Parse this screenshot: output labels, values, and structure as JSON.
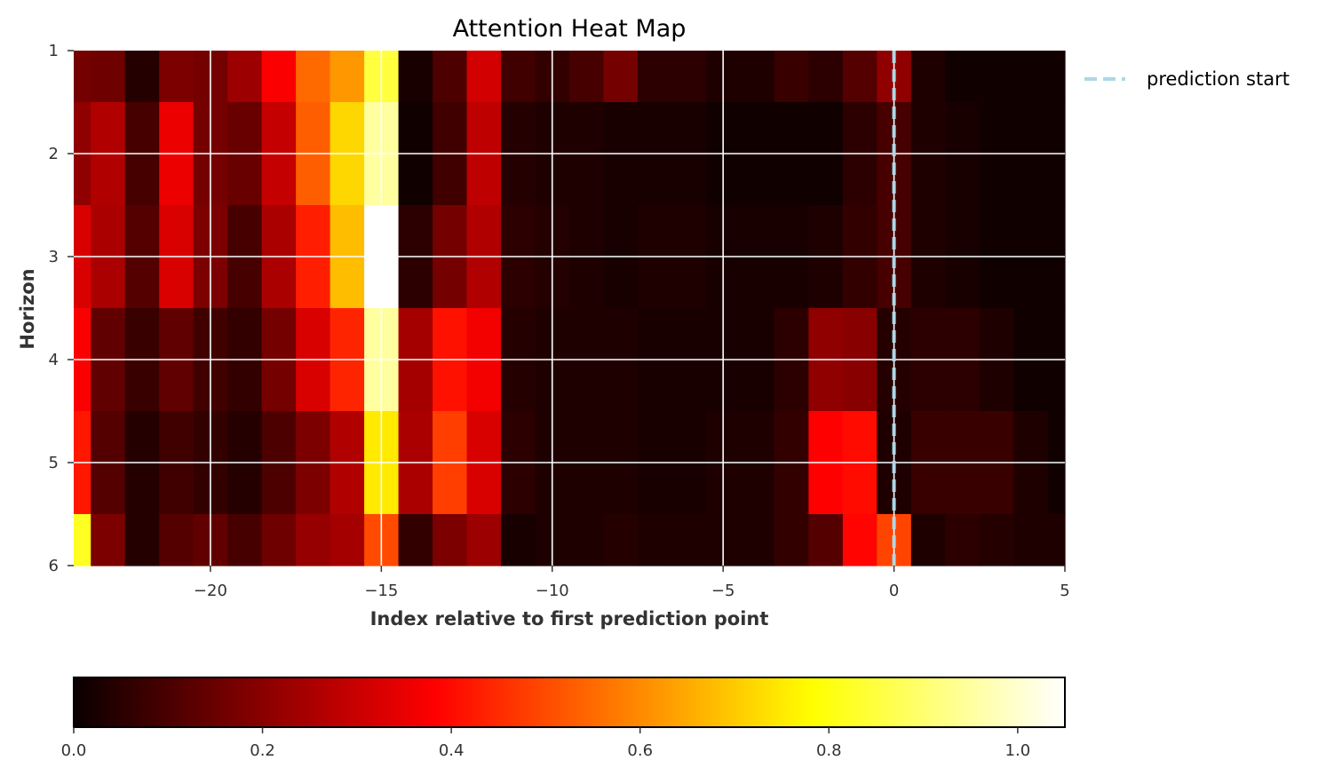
{
  "chart_data": {
    "type": "heatmap",
    "title": "Attention Heat Map",
    "xlabel": "Index relative to first prediction point",
    "ylabel": "Horizon",
    "xlim": [
      -24,
      5
    ],
    "ylim": [
      1,
      6
    ],
    "x_ticks": [
      -20,
      -15,
      -10,
      -5,
      0,
      5
    ],
    "x_tick_labels": [
      "−20",
      "−15",
      "−10",
      "−5",
      "0",
      "5"
    ],
    "y_ticks": [
      1,
      2,
      3,
      4,
      5,
      6
    ],
    "y_tick_labels": [
      "1",
      "2",
      "3",
      "4",
      "5",
      "6"
    ],
    "grid": true,
    "x_start": -24,
    "x_step": 1,
    "y_edges": [
      1,
      1.5,
      2.5,
      3.5,
      4.5,
      5.5,
      6
    ],
    "values": [
      [
        0.16,
        0.15,
        0.04,
        0.17,
        0.16,
        0.22,
        0.36,
        0.55,
        0.62,
        0.85,
        0.02,
        0.1,
        0.3,
        0.08,
        0.06,
        0.09,
        0.16,
        0.05,
        0.05,
        0.03,
        0.03,
        0.07,
        0.05,
        0.11,
        0.2,
        0.03,
        0.01,
        0.01,
        0.01,
        0.01
      ],
      [
        0.2,
        0.25,
        0.09,
        0.34,
        0.16,
        0.14,
        0.28,
        0.53,
        0.72,
        0.95,
        0.01,
        0.08,
        0.27,
        0.04,
        0.03,
        0.03,
        0.02,
        0.02,
        0.02,
        0.01,
        0.01,
        0.01,
        0.01,
        0.05,
        0.09,
        0.03,
        0.02,
        0.01,
        0.01,
        0.01
      ],
      [
        0.31,
        0.24,
        0.11,
        0.31,
        0.17,
        0.09,
        0.24,
        0.43,
        0.68,
        1.05,
        0.05,
        0.16,
        0.25,
        0.05,
        0.04,
        0.03,
        0.02,
        0.03,
        0.03,
        0.02,
        0.02,
        0.02,
        0.03,
        0.06,
        0.09,
        0.03,
        0.02,
        0.01,
        0.01,
        0.01
      ],
      [
        0.36,
        0.13,
        0.07,
        0.13,
        0.08,
        0.06,
        0.16,
        0.31,
        0.44,
        0.95,
        0.23,
        0.41,
        0.35,
        0.04,
        0.03,
        0.03,
        0.03,
        0.02,
        0.02,
        0.02,
        0.02,
        0.05,
        0.2,
        0.19,
        0.04,
        0.05,
        0.05,
        0.03,
        0.01,
        0.01
      ],
      [
        0.42,
        0.11,
        0.04,
        0.08,
        0.06,
        0.04,
        0.1,
        0.17,
        0.25,
        0.75,
        0.24,
        0.48,
        0.31,
        0.05,
        0.03,
        0.03,
        0.03,
        0.02,
        0.02,
        0.03,
        0.03,
        0.06,
        0.38,
        0.4,
        0.03,
        0.07,
        0.07,
        0.07,
        0.03,
        0.01
      ],
      [
        0.82,
        0.17,
        0.04,
        0.11,
        0.13,
        0.09,
        0.15,
        0.21,
        0.23,
        0.5,
        0.06,
        0.17,
        0.22,
        0.02,
        0.03,
        0.03,
        0.04,
        0.03,
        0.03,
        0.03,
        0.03,
        0.06,
        0.11,
        0.39,
        0.49,
        0.03,
        0.05,
        0.04,
        0.03,
        0.03
      ]
    ],
    "vline": {
      "x": 0,
      "label": "prediction start",
      "color": "#add8e6",
      "style": "dashed"
    },
    "legend_position": "upper-right-outside",
    "colormap": "hot",
    "colorbar": {
      "orientation": "horizontal",
      "range": [
        0,
        1.05
      ],
      "ticks": [
        0.0,
        0.2,
        0.4,
        0.6,
        0.8,
        1.0
      ],
      "tick_labels": [
        "0.0",
        "0.2",
        "0.4",
        "0.6",
        "0.8",
        "1.0"
      ]
    }
  }
}
